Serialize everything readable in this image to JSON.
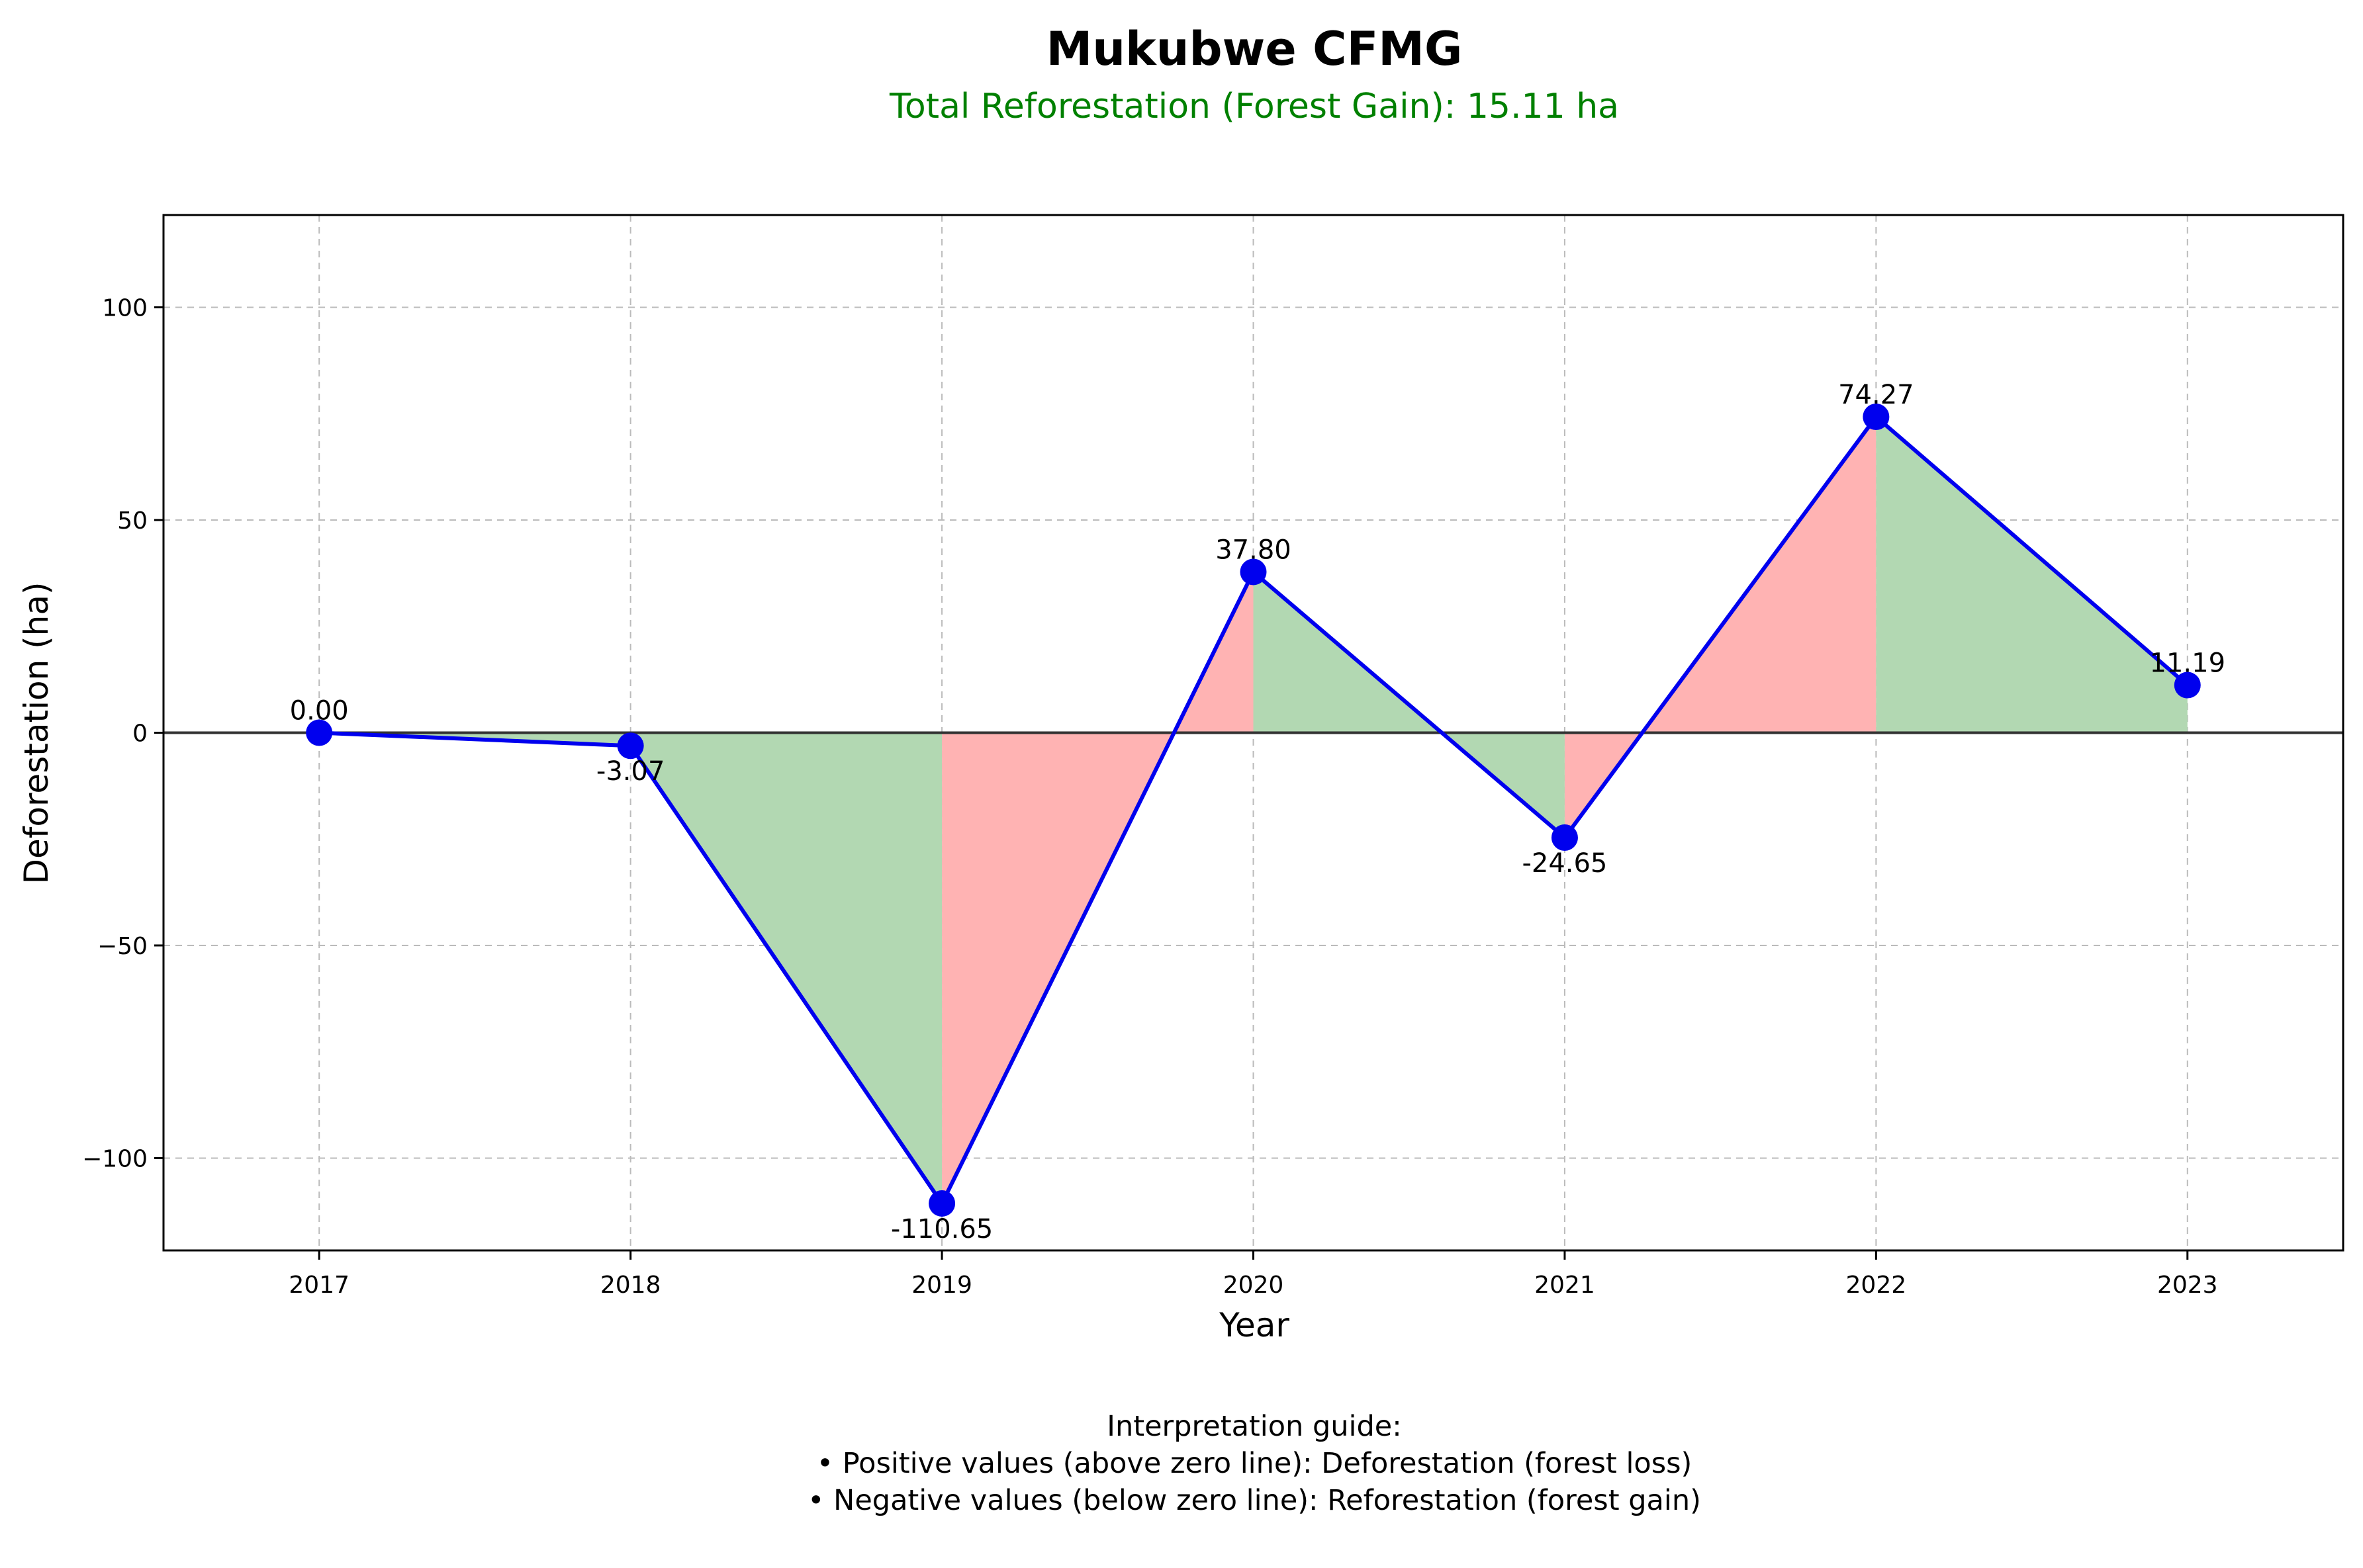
{
  "header": {
    "title": "Mukubwe CFMG",
    "subtitle": "Total Reforestation (Forest Gain): 15.11 ha"
  },
  "guide": {
    "heading": "Interpretation guide:",
    "line1": "• Positive values (above zero line): Deforestation (forest loss)",
    "line2": "• Negative values (below zero line): Reforestation (forest gain)"
  },
  "colors": {
    "line": "#0000ee",
    "marker": "#0000ee",
    "gain_fill": "#b2d8b2",
    "loss_fill": "#ffb3b3",
    "subtitle": "#008000",
    "zero_line": "#333333",
    "grid": "#bbbbbb"
  },
  "chart_data": {
    "type": "line",
    "title": "Mukubwe CFMG",
    "subtitle": "Total Reforestation (Forest Gain): 15.11 ha",
    "xlabel": "Year",
    "ylabel": "Deforestation (ha)",
    "x": [
      2017,
      2018,
      2019,
      2020,
      2021,
      2022,
      2023
    ],
    "values": [
      0.0,
      -3.07,
      -110.65,
      37.8,
      -24.65,
      74.27,
      11.19
    ],
    "data_labels": [
      "0.00",
      "-3.07",
      "-110.65",
      "37.80",
      "-24.65",
      "74.27",
      "11.19"
    ],
    "yticks": [
      -100,
      -50,
      0,
      50,
      100
    ],
    "ytick_labels": [
      "−100",
      "−50",
      "0",
      "50",
      "100"
    ],
    "xtick_labels": [
      "2017",
      "2018",
      "2019",
      "2020",
      "2021",
      "2022",
      "2023"
    ],
    "ylim": [
      -121.7,
      121.7
    ],
    "xlim": [
      2016.5,
      2023.5
    ],
    "grid": true,
    "fill": "green for reforestation segments, red for deforestation segments"
  }
}
